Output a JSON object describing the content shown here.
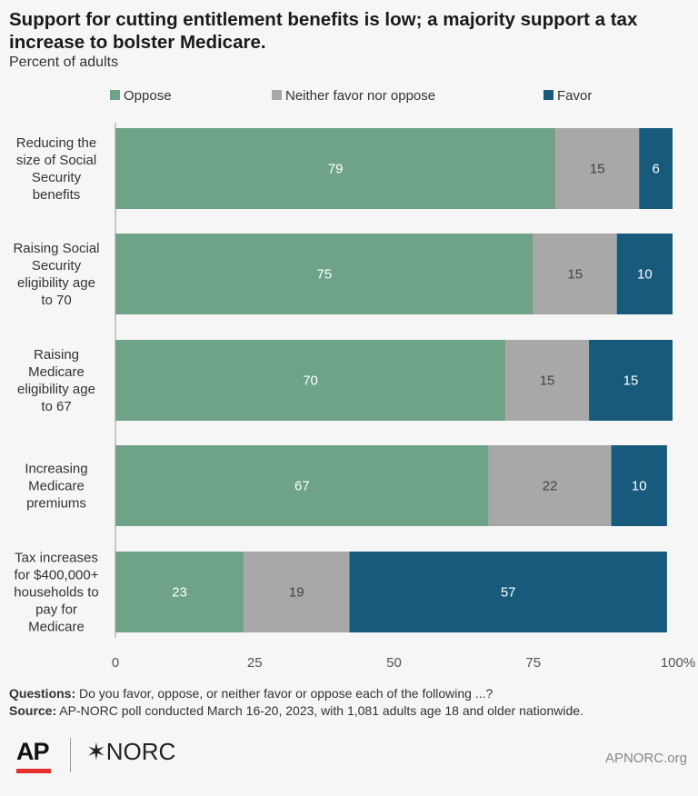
{
  "header": {
    "title": "Support for cutting entitlement benefits is low; a majority support a tax increase to bolster Medicare.",
    "subtitle": "Percent of adults"
  },
  "notes": {
    "questions_label": "Questions:",
    "questions_text": " Do you favor, oppose, or neither favor or oppose each of the following ...?",
    "source_label": "Source:",
    "source_text": " AP-NORC poll conducted March 16-20, 2023, with 1,081 adults age 18 and older nationwide."
  },
  "footer": {
    "ap_logo": "AP",
    "norc_logo": "✶NORC",
    "site": "APNORC.org"
  },
  "colors": {
    "oppose": "#6fa388",
    "neither": "#a8a8a8",
    "favor": "#175a7c",
    "text_light": "#ffffff",
    "text_dark": "#444444"
  },
  "chart_data": {
    "type": "bar",
    "orientation": "horizontal",
    "stacked": true,
    "categories": [
      [
        "Reducing the",
        "size of Social",
        "Security",
        "benefits"
      ],
      [
        "Raising Social",
        "Security",
        "eligibility age",
        "to 70"
      ],
      [
        "Raising",
        "Medicare",
        "eligibility age",
        "to 67"
      ],
      [
        "Increasing",
        "Medicare",
        "premiums"
      ],
      [
        "Tax increases",
        "for $400,000+",
        "households to",
        "pay for",
        "Medicare"
      ]
    ],
    "series": [
      {
        "name": "Oppose",
        "values": [
          79,
          75,
          70,
          67,
          23
        ]
      },
      {
        "name": "Neither favor nor oppose",
        "values": [
          15,
          15,
          15,
          22,
          19
        ]
      },
      {
        "name": "Favor",
        "values": [
          6,
          10,
          15,
          10,
          57
        ]
      }
    ],
    "xlim": [
      0,
      100
    ],
    "xticks": [
      "0",
      "25",
      "50",
      "75",
      "100%"
    ],
    "xtick_values": [
      0,
      25,
      50,
      75,
      100
    ],
    "legend_position": "top",
    "grid": false
  }
}
